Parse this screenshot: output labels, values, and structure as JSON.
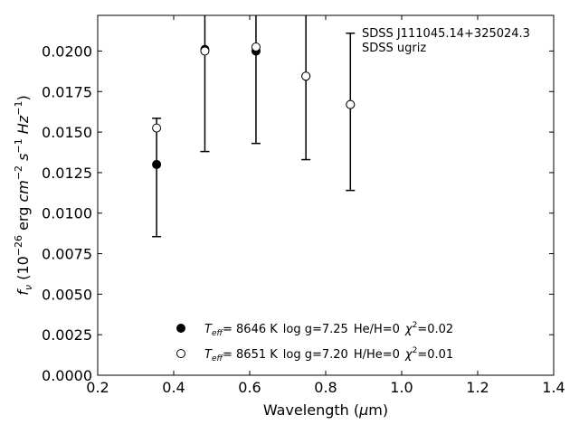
{
  "chart_data": {
    "type": "scatter",
    "annotation": [
      "SDSS J111045.14+325024.3",
      "SDSS ugriz"
    ],
    "xlabel": "Wavelength (μm)",
    "ylabel": "f_ν (10^-26 erg cm^-2 s^-1 Hz^-1)",
    "xlim": [
      0.2,
      1.4
    ],
    "ylim": [
      0.0,
      0.0222
    ],
    "x_ticks": [
      "0.2",
      "0.4",
      "0.6",
      "0.8",
      "1.0",
      "1.2",
      "1.4"
    ],
    "y_ticks": [
      "0.0000",
      "0.0025",
      "0.0050",
      "0.0075",
      "0.0100",
      "0.0125",
      "0.0150",
      "0.0175",
      "0.0200"
    ],
    "observed": {
      "x": [
        0.355,
        0.482,
        0.6166,
        0.748,
        0.8932
      ],
      "y": [
        0.01525,
        0.02,
        0.02025,
        null,
        null
      ],
      "yerr": [
        0.0036,
        0.0062,
        0.006,
        0.0052,
        0.0052
      ]
    },
    "series": [
      {
        "name": "Teff= 8646 K log g=7.25 He/H=0 χ2=0.02",
        "marker": "filled",
        "x": [
          0.355,
          0.482,
          0.6166,
          0.748,
          0.865
        ],
        "y": [
          0.013,
          0.0201,
          0.02,
          0.01845,
          0.0167
        ]
      },
      {
        "name": "Teff= 8651 K log g=7.20 H/He=0 χ2=0.01",
        "marker": "open",
        "x": [
          0.355,
          0.482,
          0.6166,
          0.748,
          0.865
        ],
        "y": [
          0.01525,
          0.02,
          0.02025,
          0.01845,
          0.0167
        ]
      }
    ],
    "errorbars": [
      {
        "x": 0.355,
        "low": 0.00855,
        "high": 0.01585
      },
      {
        "x": 0.482,
        "low": 0.0138,
        "high": 0.0222
      },
      {
        "x": 0.6166,
        "low": 0.0143,
        "high": 0.0222
      },
      {
        "x": 0.748,
        "low": 0.0133,
        "high": 0.0222
      },
      {
        "x": 0.865,
        "low": 0.0114,
        "high": 0.0211
      }
    ],
    "legend": {
      "placement": "bottom-center",
      "entries": [
        {
          "marker": "filled",
          "teff_label": "T",
          "teff_sub": "eff",
          "teff_value": "=  8646 K",
          "logg": "log g=7.25",
          "comp": "He/H=0",
          "chi_label": "χ",
          "chi_sup": "2",
          "chi_value": "=0.02"
        },
        {
          "marker": "open",
          "teff_label": "T",
          "teff_sub": "eff",
          "teff_value": "=  8651 K",
          "logg": "log g=7.20",
          "comp": "H/He=0",
          "chi_label": "χ",
          "chi_sup": "2",
          "chi_value": "=0.01"
        }
      ]
    },
    "colors": {
      "marker": "#000000",
      "axis": "#000000",
      "background": "#ffffff"
    }
  }
}
